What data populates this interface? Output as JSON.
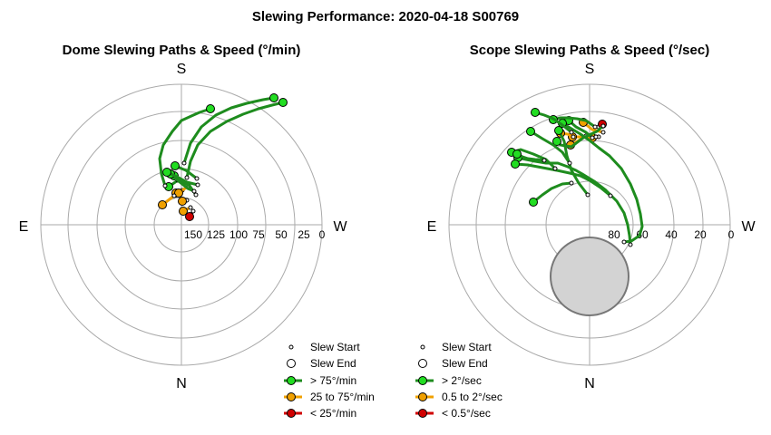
{
  "title": "Slewing Performance: 2020-04-18 S00769",
  "chart_data": [
    {
      "type": "polar",
      "title": "Dome Slewing Paths & Speed (°/min)",
      "directions": {
        "top": "S",
        "left": "E",
        "right": "W",
        "bottom": "N"
      },
      "radial_ticks": [
        "150",
        "125",
        "100",
        "75",
        "50",
        "25",
        "0"
      ],
      "radial_axis": {
        "max": 175,
        "inverted": true
      },
      "legend": {
        "start": "Slew Start",
        "end": "Slew End",
        "fast": "> 75°/min",
        "medium": "25 to 75°/min",
        "slow": "< 25°/min"
      },
      "colors": {
        "fast": "#1e8c1e",
        "fast_fill": "#22dd22",
        "medium": "#f0a000",
        "slow": "#d00000"
      },
      "series": [
        {
          "speed": "slow",
          "points": [
            [
              209,
              139
            ],
            [
              213,
              133
            ]
          ]
        },
        {
          "speed": "medium",
          "points": [
            [
              202,
              133
            ],
            [
              210,
              129
            ]
          ]
        },
        {
          "speed": "medium",
          "points": [
            [
              201,
              122
            ],
            [
              206,
              121
            ]
          ]
        },
        {
          "speed": "medium",
          "points": [
            [
              194,
              113
            ],
            [
              201,
              110
            ]
          ]
        },
        {
          "speed": "medium",
          "points": [
            [
              197,
              113
            ],
            [
              208,
              105
            ]
          ]
        },
        {
          "speed": "medium",
          "points": [
            [
              179,
              126
            ],
            [
              192,
              116
            ]
          ]
        },
        {
          "speed": "fast",
          "points": [
            [
              186,
              106
            ],
            [
              196,
              99
            ]
          ]
        },
        {
          "speed": "fast",
          "points": [
            [
              192,
              94
            ],
            [
              198,
              99
            ],
            [
              209,
              105
            ],
            [
              216,
              115
            ]
          ]
        },
        {
          "speed": "fast",
          "points": [
            [
              188,
              92
            ],
            [
              197,
              100
            ],
            [
              207,
              108
            ],
            [
              214,
              111
            ]
          ]
        },
        {
          "speed": "fast",
          "points": [
            [
              184,
              90
            ],
            [
              195,
              95
            ],
            [
              206,
              101
            ],
            [
              218,
              104
            ]
          ]
        },
        {
          "speed": "fast",
          "points": [
            [
              193,
              83
            ],
            [
              205,
              88
            ],
            [
              217,
              97
            ]
          ]
        },
        {
          "speed": "fast",
          "points": [
            [
              232,
              20
            ],
            [
              220,
              24
            ],
            [
              211,
              28
            ],
            [
              200,
              33
            ],
            [
              190,
              45
            ],
            [
              180,
              60
            ],
            [
              176,
              75
            ],
            [
              178,
              92
            ],
            [
              182,
              105
            ]
          ]
        },
        {
          "speed": "fast",
          "points": [
            [
              312,
              13
            ],
            [
              300,
              16
            ],
            [
              285,
              20
            ],
            [
              268,
              26
            ],
            [
              250,
              34
            ],
            [
              232,
              45
            ],
            [
              218,
              60
            ],
            [
              210,
              78
            ],
            [
              206,
              96
            ]
          ]
        },
        {
          "speed": "fast",
          "points": [
            [
              302,
              8
            ],
            [
              290,
              10
            ],
            [
              272,
              14
            ],
            [
              255,
              19
            ],
            [
              238,
              27
            ],
            [
              222,
              40
            ],
            [
              210,
              58
            ],
            [
              203,
              80
            ]
          ]
        }
      ]
    },
    {
      "type": "polar",
      "title": "Scope Slewing Paths & Speed (°/sec)",
      "directions": {
        "top": "S",
        "left": "E",
        "right": "W",
        "bottom": "N"
      },
      "radial_ticks": [
        "80",
        "60",
        "40",
        "20",
        "0"
      ],
      "radial_axis": {
        "max": 90,
        "inverted": true
      },
      "legend": {
        "start": "Slew Start",
        "end": "Slew End",
        "fast": "> 2°/sec",
        "medium": "0.5 to 2°/sec",
        "slow": "< 0.5°/sec"
      },
      "colors": {
        "fast": "#1e8c1e",
        "fast_fill": "#22dd22",
        "medium": "#f0a000",
        "slow": "#d00000"
      },
      "series": [
        {
          "speed": "slow",
          "points": [
            [
              214,
              37
            ],
            [
              210,
              40
            ]
          ]
        },
        {
          "speed": "medium",
          "points": [
            [
              203,
              52
            ],
            [
              210,
              51
            ]
          ]
        },
        {
          "speed": "medium",
          "points": [
            [
              181,
              51
            ],
            [
              196,
              51
            ],
            [
              207,
              51
            ]
          ]
        },
        {
          "speed": "medium",
          "points": [
            [
              193,
              35
            ],
            [
              203,
              43
            ],
            [
              215,
              46
            ]
          ]
        },
        {
          "speed": "medium",
          "points": [
            [
              179,
              60
            ],
            [
              188,
              55
            ],
            [
              196,
              50
            ]
          ]
        },
        {
          "speed": "medium",
          "points": [
            [
              168,
              47
            ],
            [
              176,
              48
            ],
            [
              182,
              51
            ]
          ]
        },
        {
          "speed": "fast",
          "points": [
            [
              164,
              56
            ],
            [
              168,
              60
            ],
            [
              180,
              62
            ],
            [
              193,
              52
            ],
            [
              208,
              45
            ],
            [
              215,
              39
            ]
          ]
        },
        {
          "speed": "fast",
          "points": [
            [
              177,
              33
            ],
            [
              185,
              40
            ],
            [
              196,
              46
            ],
            [
              203,
              52
            ]
          ]
        },
        {
          "speed": "fast",
          "points": [
            [
              166,
              44
            ],
            [
              172,
              56
            ],
            [
              175,
              72
            ],
            [
              180,
              88
            ],
            [
              188,
              102
            ],
            [
              198,
              115
            ]
          ]
        },
        {
          "speed": "fast",
          "points": [
            [
              135,
              45
            ],
            [
              148,
              53
            ],
            [
              160,
              60
            ],
            [
              170,
              68
            ],
            [
              178,
              80
            ]
          ]
        },
        {
          "speed": "fast",
          "points": [
            [
              170,
              36
            ],
            [
              180,
              42
            ],
            [
              190,
              48
            ],
            [
              200,
              55
            ],
            [
              210,
              63
            ],
            [
              222,
              72
            ],
            [
              235,
              86
            ],
            [
              245,
              103
            ],
            [
              252,
              120
            ],
            [
              256,
              136
            ],
            [
              258,
              150
            ],
            [
              255,
              160
            ],
            [
              246,
              166
            ],
            [
              238,
              167
            ]
          ]
        },
        {
          "speed": "fast",
          "points": [
            [
              121,
              74
            ],
            [
              130,
              76
            ],
            [
              140,
              78
            ],
            [
              152,
              80
            ],
            [
              165,
              80
            ],
            [
              176,
              84
            ],
            [
              185,
              88
            ],
            [
              192,
              92
            ],
            [
              205,
              100
            ],
            [
              218,
              110
            ],
            [
              230,
              122
            ],
            [
              238,
              135
            ],
            [
              242,
              148
            ],
            [
              244,
              160
            ],
            [
              245,
              170
            ]
          ]
        },
        {
          "speed": "fast",
          "points": [
            [
              118,
              81
            ],
            [
              132,
              82
            ],
            [
              148,
              85
            ],
            [
              164,
              88
            ],
            [
              178,
              91
            ],
            [
              190,
              94
            ],
            [
              200,
              99
            ],
            [
              212,
              107
            ],
            [
              223,
              116
            ]
          ]
        },
        {
          "speed": "fast",
          "points": [
            [
              114,
              68
            ],
            [
              124,
              65
            ],
            [
              138,
              70
            ],
            [
              152,
              76
            ],
            [
              162,
              86
            ]
          ]
        },
        {
          "speed": "fast",
          "points": [
            [
              138,
              123
            ],
            [
              148,
              115
            ],
            [
              158,
              108
            ],
            [
              170,
              103
            ],
            [
              180,
              102
            ]
          ]
        },
        {
          "speed": "fast",
          "points": [
            [
              160,
              32
            ],
            [
              168,
              30
            ],
            [
              176,
              30
            ],
            [
              186,
              31
            ],
            [
              196,
              33
            ],
            [
              206,
              40
            ]
          ]
        },
        {
          "speed": "fast",
          "points": [
            [
              140,
              24
            ],
            [
              150,
              27
            ],
            [
              160,
              31
            ],
            [
              170,
              38
            ],
            [
              180,
              46
            ]
          ]
        },
        {
          "speed": "fast",
          "points": [
            [
              120,
              70
            ],
            [
              126,
              73
            ],
            [
              132,
              75
            ],
            [
              140,
              76
            ],
            [
              150,
              77
            ]
          ]
        }
      ],
      "blocked_region": {
        "center": [
          190,
          165
        ],
        "radius": 14
      }
    }
  ]
}
